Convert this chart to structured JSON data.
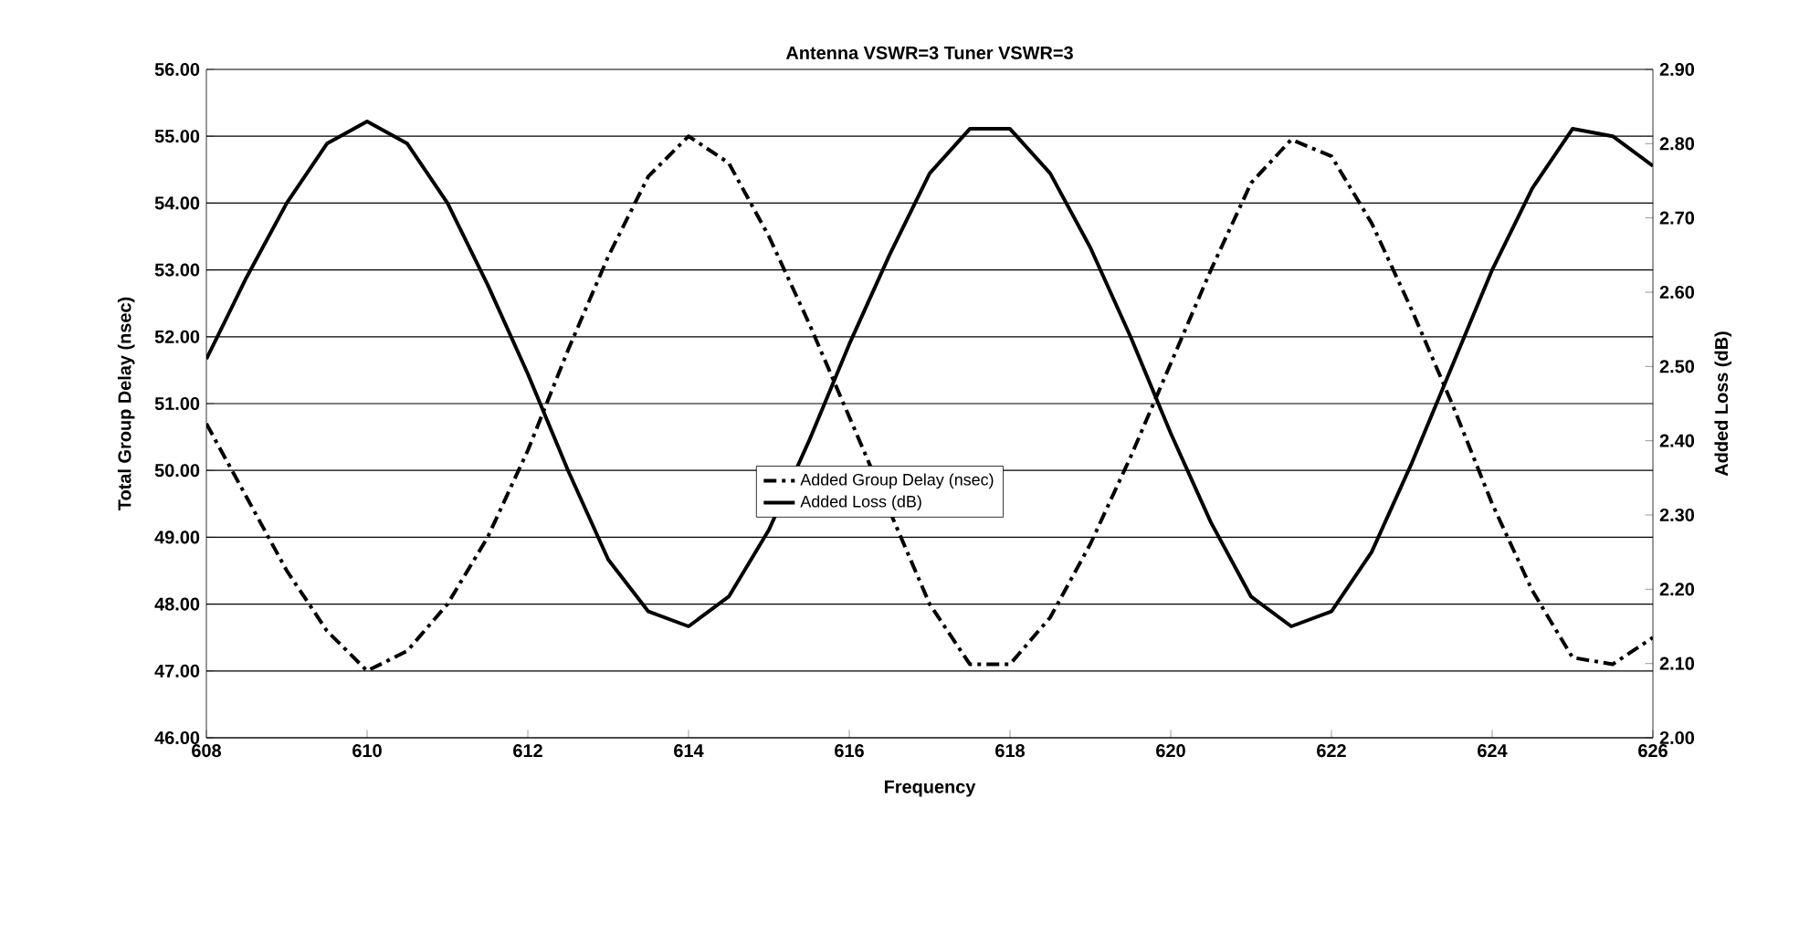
{
  "chart_data": {
    "type": "line",
    "title": "Antenna VSWR=3  Tuner VSWR=3",
    "xlabel": "Frequency",
    "ylabel": "Total Group Delay (nsec)",
    "y2label": "Added Loss (dB)",
    "x": [
      608,
      608.5,
      609,
      609.5,
      610,
      610.5,
      611,
      611.5,
      612,
      612.5,
      613,
      613.5,
      614,
      614.5,
      615,
      615.5,
      616,
      616.5,
      617,
      617.5,
      618,
      618.5,
      619,
      619.5,
      620,
      620.5,
      621,
      621.5,
      622,
      622.5,
      623,
      623.5,
      624,
      624.5,
      625,
      625.5,
      626
    ],
    "series": [
      {
        "name": "Added Group Delay (nsec)",
        "color": "#000000",
        "line_style": "dashed",
        "values": [
          50.7,
          49.6,
          48.5,
          47.6,
          47.0,
          47.3,
          48.0,
          49.0,
          50.3,
          51.8,
          53.2,
          54.4,
          55.0,
          54.6,
          53.5,
          52.2,
          50.8,
          null,
          48.0,
          47.1,
          47.1,
          47.8,
          48.9,
          50.2,
          51.6,
          53.0,
          54.3,
          54.95,
          54.7,
          53.7,
          52.4,
          51.0,
          49.5,
          48.2,
          47.2,
          47.1,
          47.5
        ]
      },
      {
        "name": "Added Loss (dB)",
        "color": "#000000",
        "line_style": "solid",
        "axis": "y2",
        "values": [
          2.51,
          2.62,
          2.72,
          2.8,
          2.83,
          2.8,
          2.72,
          2.61,
          2.49,
          2.36,
          2.24,
          2.17,
          2.15,
          2.19,
          2.28,
          2.4,
          2.53,
          2.65,
          2.76,
          2.82,
          2.82,
          2.76,
          2.66,
          2.54,
          2.41,
          2.29,
          2.19,
          2.15,
          2.17,
          2.25,
          2.37,
          2.5,
          2.63,
          2.74,
          2.82,
          2.81,
          2.77
        ]
      }
    ],
    "xlim": [
      608,
      626
    ],
    "xticks": [
      608,
      610,
      612,
      614,
      616,
      618,
      620,
      622,
      624,
      626
    ],
    "ylim": [
      46,
      56
    ],
    "yticks": [
      {
        "value": 46,
        "label": "46.00"
      },
      {
        "value": 47,
        "label": "47.00"
      },
      {
        "value": 48,
        "label": "48.00"
      },
      {
        "value": 49,
        "label": "49.00"
      },
      {
        "value": 50,
        "label": "50.00"
      },
      {
        "value": 51,
        "label": "51.00"
      },
      {
        "value": 52,
        "label": "52.00"
      },
      {
        "value": 53,
        "label": "53.00"
      },
      {
        "value": 54,
        "label": "54.00"
      },
      {
        "value": 55,
        "label": "55.00"
      },
      {
        "value": 56,
        "label": "56.00"
      }
    ],
    "y2lim": [
      2.0,
      2.9
    ],
    "y2ticks": [
      {
        "value": 2.0,
        "label": "2.00"
      },
      {
        "value": 2.1,
        "label": "2.10"
      },
      {
        "value": 2.2,
        "label": "2.20"
      },
      {
        "value": 2.3,
        "label": "2.30"
      },
      {
        "value": 2.4,
        "label": "2.40"
      },
      {
        "value": 2.5,
        "label": "2.50"
      },
      {
        "value": 2.6,
        "label": "2.60"
      },
      {
        "value": 2.7,
        "label": "2.70"
      },
      {
        "value": 2.8,
        "label": "2.80"
      },
      {
        "value": 2.9,
        "label": "2.90"
      }
    ],
    "grid": "y",
    "legend": "center",
    "marker": "none"
  }
}
